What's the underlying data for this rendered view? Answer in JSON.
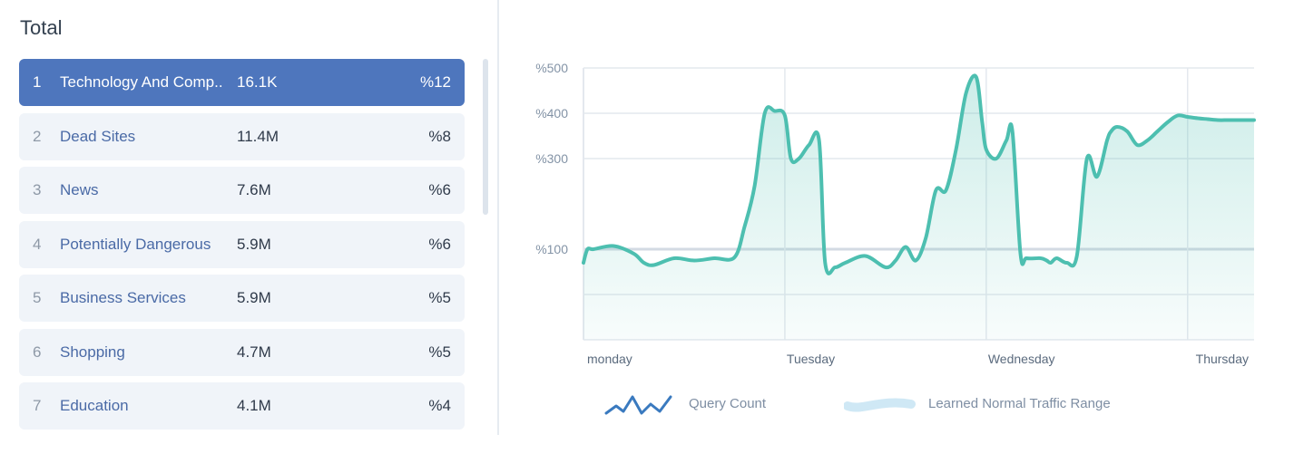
{
  "panel": {
    "title": "Total",
    "rows": [
      {
        "index": "1",
        "name": "Technology And Comp..",
        "value": "16.1K",
        "percent": "%12",
        "active": true
      },
      {
        "index": "2",
        "name": "Dead Sites",
        "value": "11.4M",
        "percent": "%8"
      },
      {
        "index": "3",
        "name": "News",
        "value": "7.6M",
        "percent": "%6"
      },
      {
        "index": "4",
        "name": "Potentially Dangerous",
        "value": "5.9M",
        "percent": "%6"
      },
      {
        "index": "5",
        "name": "Business Services",
        "value": "5.9M",
        "percent": "%5"
      },
      {
        "index": "6",
        "name": "Shopping",
        "value": "4.7M",
        "percent": "%5"
      },
      {
        "index": "7",
        "name": "Education",
        "value": "4.1M",
        "percent": "%4"
      }
    ]
  },
  "legend": {
    "query_count": "Query Count",
    "normal_range": "Learned Normal Traffic Range"
  },
  "colors": {
    "active_row": "#4e76bd",
    "row_bg": "#f0f4f9",
    "series": "#4dbfb0",
    "query_icon": "#3a7abf",
    "range_icon": "#cfe8f5"
  },
  "chart_data": {
    "type": "area",
    "x_tick_labels": [
      "monday",
      "Tuesday",
      "Wednesday",
      "Thursday"
    ],
    "y_tick_labels": [
      "%100",
      "%300",
      "%400",
      "%500"
    ],
    "y_range": [
      -100,
      500
    ],
    "grid": true,
    "series": [
      {
        "x": [
          0,
          0.02,
          0.05,
          0.15,
          0.25,
          0.3,
          0.35,
          0.45,
          0.55,
          0.65,
          0.75,
          0.8,
          0.85,
          0.9,
          0.95,
          1.0,
          1.03,
          1.07,
          1.12,
          1.17,
          1.2,
          1.25,
          1.3,
          1.4,
          1.5,
          1.55,
          1.6,
          1.65,
          1.7,
          1.75,
          1.8,
          1.85,
          1.9,
          1.95,
          1.98,
          2.0,
          2.05,
          2.1,
          2.13,
          2.17,
          2.2,
          2.27,
          2.3,
          2.32,
          2.35,
          2.4,
          2.45,
          2.5,
          2.55,
          2.6,
          2.62,
          2.65,
          2.7,
          2.75,
          2.8,
          2.85,
          2.9,
          2.95,
          3.0,
          3.05,
          3.1,
          3.15,
          3.2,
          3.25,
          3.3,
          3.33
        ],
        "y": [
          70,
          100,
          100,
          107,
          90,
          70,
          65,
          80,
          75,
          80,
          82,
          150,
          240,
          400,
          405,
          395,
          300,
          300,
          330,
          340,
          70,
          60,
          70,
          85,
          60,
          75,
          105,
          75,
          125,
          230,
          230,
          320,
          445,
          480,
          380,
          320,
          300,
          340,
          360,
          90,
          80,
          80,
          75,
          70,
          80,
          70,
          85,
          300,
          260,
          340,
          360,
          370,
          360,
          330,
          340,
          360,
          380,
          395,
          392,
          389,
          387,
          385,
          385,
          385,
          385,
          385
        ]
      }
    ]
  }
}
